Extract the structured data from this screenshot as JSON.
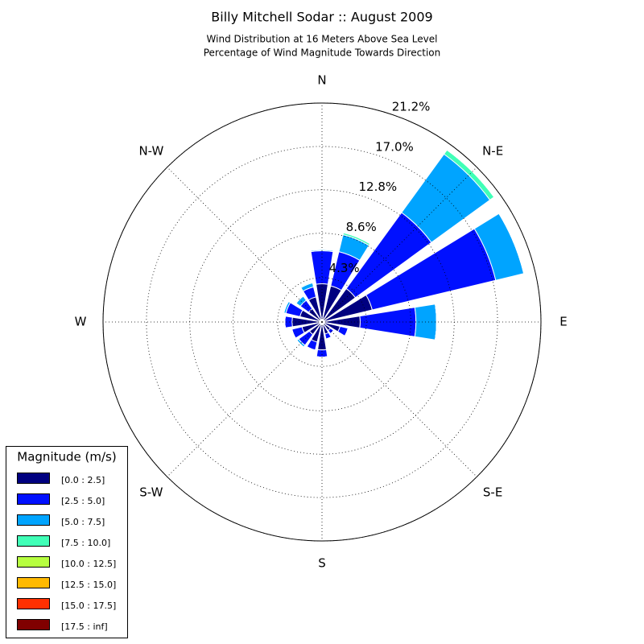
{
  "chart_data": {
    "type": "windrose",
    "title": "Billy Mitchell Sodar :: August 2009",
    "subtitle": [
      "Wind Distribution at 16 Meters Above Sea Level",
      "Percentage of Wind Magnitude Towards Direction"
    ],
    "categories": [
      "N",
      null,
      "N-E",
      null,
      "E",
      null,
      "S-E",
      null,
      "S",
      null,
      "S-W",
      null,
      "W",
      null,
      "N-W",
      null
    ],
    "rlim": [
      0,
      21.2
    ],
    "rticks": [
      {
        "value": 4.3,
        "label": "4.3%"
      },
      {
        "value": 8.6,
        "label": "8.6%"
      },
      {
        "value": 12.8,
        "label": "12.8%"
      },
      {
        "value": 17.0,
        "label": "17.0%"
      },
      {
        "value": 21.2,
        "label": "21.2%"
      }
    ],
    "grid": true,
    "legend_title": "Magnitude (m/s)",
    "legend_position": "lower left",
    "series": [
      {
        "name": "[0.0 : 2.5]",
        "color": "#000080",
        "values": [
          3.7,
          3.6,
          4.0,
          5.0,
          3.7,
          1.8,
          1.0,
          1.2,
          2.7,
          2.0,
          1.5,
          2.0,
          2.9,
          2.2,
          1.6,
          2.5
        ]
      },
      {
        "name": "[2.5 : 5.0]",
        "color": "#0010ff",
        "values": [
          3.2,
          3.4,
          9.1,
          12.3,
          5.4,
          0.8,
          0.4,
          0.5,
          0.7,
          0.8,
          1.3,
          1.0,
          0.7,
          1.4,
          1.0,
          1.0
        ]
      },
      {
        "name": "[5.0 : 7.5]",
        "color": "#00a4ff",
        "values": [
          0.1,
          1.7,
          7.0,
          2.8,
          2.0,
          0,
          0,
          0,
          0,
          0,
          0.2,
          0,
          0,
          0.2,
          0.5,
          0.4
        ]
      },
      {
        "name": "[7.5 : 10.0]",
        "color": "#40ffb7",
        "values": [
          0.05,
          0.2,
          0.5,
          0,
          0,
          0,
          0,
          0,
          0,
          0,
          0,
          0,
          0,
          0,
          0,
          0.1
        ]
      },
      {
        "name": "[10.0 : 12.5]",
        "color": "#b7ff40",
        "values": [
          0,
          0,
          0,
          0,
          0,
          0,
          0,
          0,
          0,
          0,
          0,
          0,
          0,
          0,
          0,
          0
        ]
      },
      {
        "name": "[12.5 : 15.0]",
        "color": "#ffb900",
        "values": [
          0,
          0,
          0,
          0,
          0,
          0,
          0,
          0,
          0,
          0,
          0,
          0,
          0,
          0,
          0,
          0
        ]
      },
      {
        "name": "[15.0 : 17.5]",
        "color": "#ff3000",
        "values": [
          0,
          0,
          0,
          0,
          0,
          0,
          0,
          0,
          0,
          0,
          0,
          0,
          0,
          0,
          0,
          0
        ]
      },
      {
        "name": "[17.5 : inf]",
        "color": "#800000",
        "values": [
          0,
          0,
          0,
          0,
          0,
          0,
          0,
          0,
          0,
          0,
          0,
          0,
          0,
          0,
          0,
          0
        ]
      }
    ]
  }
}
